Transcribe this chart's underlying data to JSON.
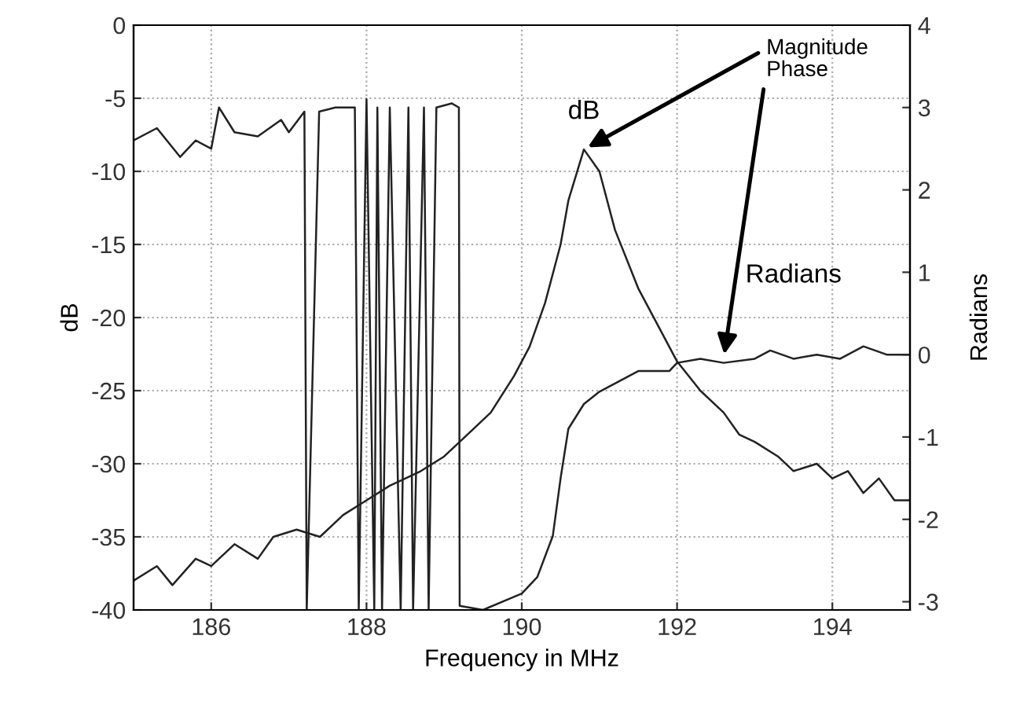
{
  "chart_data": {
    "type": "line",
    "xlabel": "Frequency in MHz",
    "ylabel": "dB",
    "y2label": "Radians",
    "xlim": [
      185,
      195
    ],
    "xticks": [
      186,
      188,
      190,
      192,
      194
    ],
    "ylim": [
      -40,
      0
    ],
    "yticks": [
      0,
      -5,
      -10,
      -15,
      -20,
      -25,
      -30,
      -35,
      -40
    ],
    "y2lim": [
      -3.1,
      4
    ],
    "y2ticks": [
      4,
      3,
      2,
      1,
      0,
      -1,
      -2,
      -3
    ],
    "grid": true,
    "legend": false,
    "marker": "none",
    "line_style": "solid",
    "series": [
      {
        "name": "Magnitude",
        "color": "#222222",
        "x": [
          185.0,
          185.3,
          185.5,
          185.8,
          186.0,
          186.3,
          186.6,
          186.8,
          187.1,
          187.4,
          187.7,
          188.0,
          188.3,
          188.7,
          189.0,
          189.3,
          189.6,
          189.9,
          190.1,
          190.3,
          190.5,
          190.6,
          190.8,
          191.0,
          191.2,
          191.5,
          191.8,
          192.0,
          192.3,
          192.6,
          192.8,
          193.0,
          193.3,
          193.5,
          193.8,
          194.0,
          194.2,
          194.4,
          194.6,
          194.8,
          195.0
        ],
        "values": [
          -38,
          -37,
          -38.3,
          -36.5,
          -37,
          -35.5,
          -36.5,
          -35,
          -34.5,
          -35,
          -33.5,
          -32.5,
          -31.5,
          -30.5,
          -29.5,
          -28,
          -26.5,
          -24,
          -22,
          -19,
          -15,
          -12,
          -8.5,
          -10,
          -14,
          -18,
          -21,
          -23,
          -25,
          -26.5,
          -28,
          -28.5,
          -29.5,
          -30.5,
          -30,
          -31,
          -30.5,
          -32,
          -31,
          -32.5,
          -32.5
        ]
      },
      {
        "name": "Phase",
        "color": "#222222",
        "axis": "y2",
        "x": [
          185.0,
          185.3,
          185.6,
          185.8,
          186.0,
          186.1,
          186.3,
          186.6,
          186.9,
          187.0,
          187.2,
          187.23,
          187.39,
          187.6,
          187.85,
          187.9,
          188.0,
          188.1,
          188.14,
          188.2,
          188.3,
          188.44,
          188.54,
          188.6,
          188.74,
          188.8,
          188.9,
          189.1,
          189.19,
          189.2,
          189.5,
          190.0,
          190.2,
          190.4,
          190.5,
          190.6,
          190.8,
          191.0,
          191.3,
          191.5,
          191.9,
          192.0,
          192.3,
          192.6,
          193.0,
          193.2,
          193.5,
          193.8,
          194.1,
          194.4,
          194.7,
          195.0
        ],
        "values": [
          2.6,
          2.75,
          2.4,
          2.6,
          2.5,
          3.0,
          2.7,
          2.65,
          2.85,
          2.7,
          2.95,
          -3.1,
          2.95,
          3.0,
          3.0,
          -3.1,
          3.1,
          -3.1,
          3.0,
          -3.1,
          3.0,
          -3.1,
          3.0,
          -3.1,
          3.0,
          -3.1,
          3.0,
          3.05,
          3.0,
          -3.05,
          -3.1,
          -2.9,
          -2.7,
          -2.2,
          -1.5,
          -0.9,
          -0.6,
          -0.45,
          -0.3,
          -0.2,
          -0.2,
          -0.1,
          -0.05,
          -0.1,
          -0.05,
          0.05,
          -0.05,
          0.0,
          -0.05,
          0.1,
          0.0,
          0.0
        ]
      }
    ],
    "annotations": [
      {
        "text": "dB",
        "x": 190.8,
        "y": -8.5
      },
      "Radians"
    ]
  }
}
